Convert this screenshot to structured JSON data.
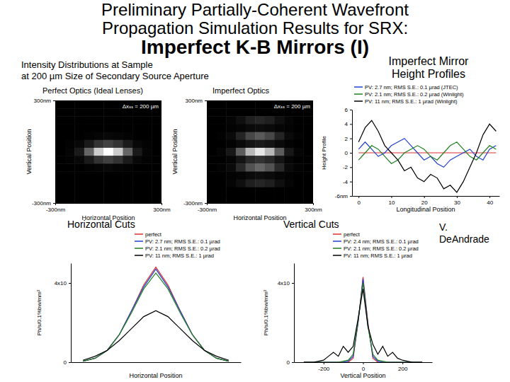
{
  "title": [
    "Preliminary Partially-Coherent Wavefront",
    "Propagation Simulation Results for SRX:",
    "Imperfect K-B Mirrors (I)"
  ],
  "subtitle": [
    "Intensity Distributions at Sample",
    "at 200 µm Size of Secondary Source Aperture"
  ],
  "credit": [
    "V.",
    "DeAndrade"
  ],
  "chart_data": [
    {
      "type": "heatmap",
      "title": "Perfect Optics (Ideal Lenses)",
      "annotation": "Δxₛₛ = 200 µm",
      "x_label": "Horizontal Position",
      "y_label": "Vertical Position",
      "xlim": [
        -300,
        300
      ],
      "ylim": [
        -300,
        300
      ],
      "xticks": [
        {
          "value": -300,
          "label": "-300nm"
        },
        {
          "value": 300,
          "label": "300nm"
        }
      ],
      "yticks": [
        {
          "value": -300,
          "label": "-300nm"
        },
        {
          "value": 300,
          "label": "300nm"
        }
      ],
      "zlim": [
        0,
        1
      ],
      "cells": [
        [
          0,
          0,
          0,
          0,
          0,
          0,
          0,
          0,
          0,
          0,
          0
        ],
        [
          0,
          0,
          0,
          0,
          0,
          0,
          0,
          0,
          0,
          0,
          0
        ],
        [
          0,
          0,
          0,
          0,
          0,
          0,
          0,
          0,
          0,
          0,
          0
        ],
        [
          0,
          0,
          0,
          0,
          0,
          0,
          0,
          0,
          0,
          0,
          0
        ],
        [
          0,
          0,
          0,
          0.01,
          0.02,
          0.03,
          0.02,
          0.01,
          0,
          0,
          0
        ],
        [
          0,
          0.01,
          0.03,
          0.1,
          0.2,
          0.25,
          0.2,
          0.1,
          0.03,
          0.01,
          0
        ],
        [
          0,
          0.02,
          0.1,
          0.4,
          0.8,
          1,
          0.8,
          0.4,
          0.1,
          0.02,
          0
        ],
        [
          0,
          0.01,
          0.03,
          0.1,
          0.2,
          0.25,
          0.2,
          0.1,
          0.03,
          0.01,
          0
        ],
        [
          0,
          0,
          0,
          0.01,
          0.02,
          0.03,
          0.02,
          0.01,
          0,
          0,
          0
        ],
        [
          0,
          0,
          0,
          0,
          0,
          0,
          0,
          0,
          0,
          0,
          0
        ],
        [
          0,
          0,
          0,
          0,
          0,
          0,
          0,
          0,
          0,
          0,
          0
        ],
        [
          0,
          0,
          0,
          0,
          0,
          0,
          0,
          0,
          0,
          0,
          0
        ],
        [
          0,
          0,
          0,
          0,
          0,
          0,
          0,
          0,
          0,
          0,
          0
        ]
      ]
    },
    {
      "type": "heatmap",
      "title": "Imperfect Optics",
      "annotation": "Δxₛₛ = 200 µm",
      "x_label": "Horizontal Position",
      "y_label": "Vertical Position",
      "xlim": [
        -300,
        300
      ],
      "ylim": [
        -300,
        300
      ],
      "xticks": [
        {
          "value": -300,
          "label": "-300nm"
        },
        {
          "value": 300,
          "label": "300nm"
        }
      ],
      "yticks": [
        {
          "value": -300,
          "label": "-300nm"
        },
        {
          "value": 300,
          "label": "300nm"
        }
      ],
      "zlim": [
        0,
        1
      ],
      "cells": [
        [
          0,
          0,
          0,
          0,
          0,
          0,
          0,
          0,
          0,
          0,
          0
        ],
        [
          0,
          0,
          0,
          0,
          0,
          0,
          0,
          0,
          0,
          0,
          0
        ],
        [
          0,
          0,
          0.02,
          0.06,
          0.12,
          0.15,
          0.12,
          0.06,
          0.02,
          0,
          0
        ],
        [
          0,
          0,
          0.01,
          0.02,
          0.04,
          0.05,
          0.04,
          0.02,
          0.01,
          0,
          0
        ],
        [
          0,
          0.01,
          0.04,
          0.14,
          0.28,
          0.35,
          0.28,
          0.14,
          0.04,
          0.01,
          0
        ],
        [
          0,
          0,
          0.01,
          0.04,
          0.08,
          0.1,
          0.08,
          0.04,
          0.01,
          0,
          0
        ],
        [
          0,
          0.02,
          0.09,
          0.36,
          0.72,
          0.9,
          0.72,
          0.36,
          0.09,
          0.02,
          0
        ],
        [
          0,
          0,
          0.02,
          0.08,
          0.16,
          0.2,
          0.16,
          0.08,
          0.02,
          0,
          0
        ],
        [
          0,
          0.01,
          0.04,
          0.16,
          0.32,
          0.4,
          0.32,
          0.16,
          0.04,
          0.01,
          0
        ],
        [
          0,
          0,
          0.01,
          0.02,
          0.04,
          0.05,
          0.04,
          0.02,
          0.01,
          0,
          0
        ],
        [
          0,
          0,
          0.02,
          0.06,
          0.12,
          0.15,
          0.12,
          0.06,
          0.02,
          0,
          0
        ],
        [
          0,
          0,
          0,
          0,
          0,
          0,
          0,
          0,
          0,
          0,
          0
        ],
        [
          0,
          0,
          0,
          0,
          0,
          0,
          0,
          0,
          0,
          0,
          0
        ]
      ]
    },
    {
      "type": "line",
      "title": [
        "Imperfect Mirror",
        "Height Profiles"
      ],
      "x_label": "Longitudinal Position",
      "y_label": "Height Profile",
      "x": [
        0,
        2,
        4,
        6,
        8,
        10,
        12,
        14,
        16,
        18,
        20,
        22,
        24,
        26,
        28,
        30,
        32,
        34,
        36,
        38,
        40,
        42
      ],
      "xlim": [
        -2,
        43
      ],
      "xticks": [
        0,
        10,
        20,
        30,
        40
      ],
      "ylim": [
        -6,
        6
      ],
      "yticks": [
        {
          "value": -6,
          "label": "-6nm"
        },
        -4,
        -2,
        0,
        2,
        4,
        6
      ],
      "legend": "top",
      "series": [
        {
          "color": "#e03030",
          "values": [
            0,
            0,
            0,
            0,
            0,
            0,
            0,
            0,
            0,
            0,
            0,
            0,
            0,
            0,
            0,
            0,
            0,
            0,
            0,
            0,
            0,
            0
          ]
        },
        {
          "name": "PV: 2.7 nm; RMS S.E.: 0.1 µrad (JTEC)",
          "color": "#2040d0",
          "values": [
            0.5,
            1.5,
            0.5,
            -0.5,
            0,
            1,
            1.5,
            2,
            1,
            0,
            -1,
            -0.5,
            -1.5,
            -2,
            -1,
            -0.5,
            0,
            0.5,
            -0.5,
            -1,
            0.5,
            1
          ]
        },
        {
          "name": "PV: 2.1 nm; RMS S.E.: 0.2 µrad (Winlight)",
          "color": "#208020",
          "values": [
            -1,
            0,
            1,
            0.5,
            -0.5,
            -1.5,
            -1,
            0,
            0.5,
            1,
            0.5,
            -0.5,
            -1,
            0,
            1,
            1.5,
            0.5,
            -0.5,
            -1,
            0,
            1,
            0.5
          ]
        },
        {
          "name": "PV: 11 nm; RMS S.E.: 1 µrad (Winlight)",
          "color": "#000000",
          "values": [
            1.5,
            3.5,
            4.5,
            3,
            1,
            0,
            -1,
            -2.5,
            -2,
            -3.5,
            -4,
            -3,
            -3.5,
            -5,
            -4.5,
            -5.5,
            -4,
            -2,
            0,
            2.5,
            4,
            3
          ]
        }
      ]
    },
    {
      "type": "line",
      "title": "Horizontal Cuts",
      "x_label": "Horizontal Position",
      "y_label": "Ph/s/0.1%bw/mm²",
      "x": [
        -300,
        -250,
        -200,
        -150,
        -100,
        -50,
        0,
        50,
        100,
        150,
        200,
        250,
        300
      ],
      "xlim": [
        -350,
        350
      ],
      "tick_labels": "y",
      "ylim": [
        0,
        5
      ],
      "yticks": [
        0,
        {
          "value": 4,
          "label": "4x10"
        }
      ],
      "legend": "top",
      "series": [
        {
          "name": "perfect",
          "color": "#e03030",
          "values": [
            0.05,
            0.2,
            0.6,
            1.4,
            2.6,
            3.9,
            4.8,
            3.9,
            2.6,
            1.4,
            0.6,
            0.2,
            0.05
          ]
        },
        {
          "name": "PV: 2.7 nm; RMS S.E.: 0.1 µrad",
          "color": "#2040d0",
          "values": [
            0.05,
            0.2,
            0.6,
            1.4,
            2.6,
            3.8,
            4.7,
            3.8,
            2.6,
            1.4,
            0.6,
            0.2,
            0.05
          ]
        },
        {
          "name": "PV: 2.1 nm; RMS S.E.: 0.2 µrad",
          "color": "#208020",
          "values": [
            0.05,
            0.2,
            0.6,
            1.4,
            2.5,
            3.7,
            4.5,
            3.7,
            2.5,
            1.4,
            0.6,
            0.2,
            0.05
          ]
        },
        {
          "name": "PV: 11 nm; RMS S.E.: 1 µrad",
          "color": "#000000",
          "values": [
            0.1,
            0.3,
            0.6,
            1.1,
            1.7,
            2.3,
            2.6,
            2.3,
            1.7,
            1.1,
            0.6,
            0.3,
            0.1
          ]
        }
      ]
    },
    {
      "type": "line",
      "title": "Vertical Cuts",
      "x_label": "Vertical Position",
      "y_label": "Ph/s/0.1%bw/mm²",
      "x": [
        -300,
        -275,
        -250,
        -225,
        -200,
        -175,
        -150,
        -125,
        -100,
        -75,
        -50,
        -25,
        0,
        25,
        50,
        75,
        100,
        125,
        150,
        175,
        200,
        225,
        250,
        275,
        300
      ],
      "xlim": [
        -350,
        350
      ],
      "xticks": [
        -200,
        0,
        200
      ],
      "ylim": [
        0,
        5
      ],
      "yticks": [
        0,
        {
          "value": 4,
          "label": "4x10"
        }
      ],
      "legend": "top",
      "series": [
        {
          "name": "perfect",
          "color": "#e03030",
          "values": [
            0,
            0,
            0,
            0,
            0,
            0,
            0,
            0,
            0,
            0,
            0.2,
            2.0,
            4.3,
            2.0,
            0.2,
            0,
            0,
            0,
            0,
            0,
            0,
            0,
            0,
            0,
            0
          ]
        },
        {
          "name": "PV: 2.4 nm; RMS S.E.: 0.1 µrad",
          "color": "#2040d0",
          "values": [
            0,
            0,
            0,
            0,
            0,
            0,
            0,
            0,
            0,
            0.05,
            0.3,
            2.0,
            4.2,
            1.9,
            0.3,
            0.05,
            0,
            0,
            0,
            0,
            0,
            0,
            0,
            0,
            0
          ]
        },
        {
          "name": "PV: 2.1 nm; RMS S.E.: 0.2 µrad",
          "color": "#208020",
          "values": [
            0,
            0,
            0,
            0,
            0,
            0,
            0,
            0,
            0.05,
            0.1,
            0.4,
            2.1,
            4.0,
            1.8,
            0.4,
            0.1,
            0.05,
            0,
            0,
            0,
            0,
            0,
            0,
            0,
            0
          ]
        },
        {
          "name": "PV: 11 nm; RMS S.E.: 1 µrad",
          "color": "#000000",
          "values": [
            0,
            0,
            0,
            0.05,
            0.1,
            0.3,
            0.5,
            0.3,
            0.8,
            0.5,
            0.8,
            2.2,
            3.7,
            1.8,
            0.9,
            0.4,
            0.8,
            0.3,
            0.5,
            0.2,
            0.1,
            0.05,
            0,
            0,
            0
          ]
        }
      ]
    }
  ]
}
